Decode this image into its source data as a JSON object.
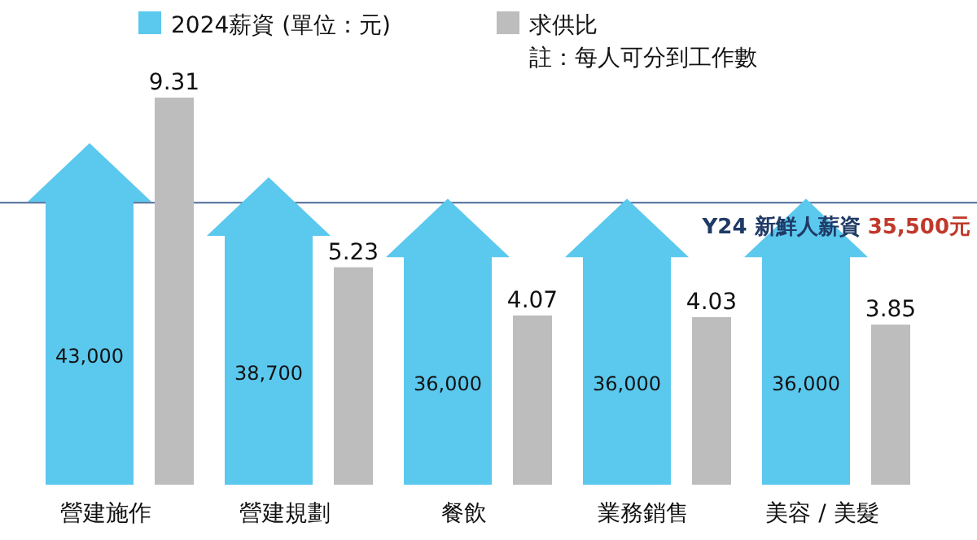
{
  "chart_data": {
    "type": "bar",
    "categories": [
      "營建施作",
      "營建規劃",
      "餐飲",
      "業務銷售",
      "美容 / 美髮"
    ],
    "series": [
      {
        "name": "2024薪資 (單位：元)",
        "color": "#5bc8ee",
        "values": [
          43000,
          38700,
          36000,
          36000,
          36000
        ],
        "value_labels": [
          "43,000",
          "38,700",
          "36,000",
          "36,000",
          "36,000"
        ]
      },
      {
        "name": "求供比",
        "color": "#bdbdbd",
        "values": [
          9.31,
          5.23,
          4.07,
          4.03,
          3.85
        ],
        "axis": "y2"
      }
    ],
    "data_labels": true,
    "legend": "top",
    "annotations": [
      "註：每人可分到工作數"
    ],
    "ref_lines": [
      {
        "axis": "y",
        "value": 35500,
        "label": "Y24 新鮮人薪資 35,500元",
        "color": "#4a6a9a"
      }
    ]
  }
}
